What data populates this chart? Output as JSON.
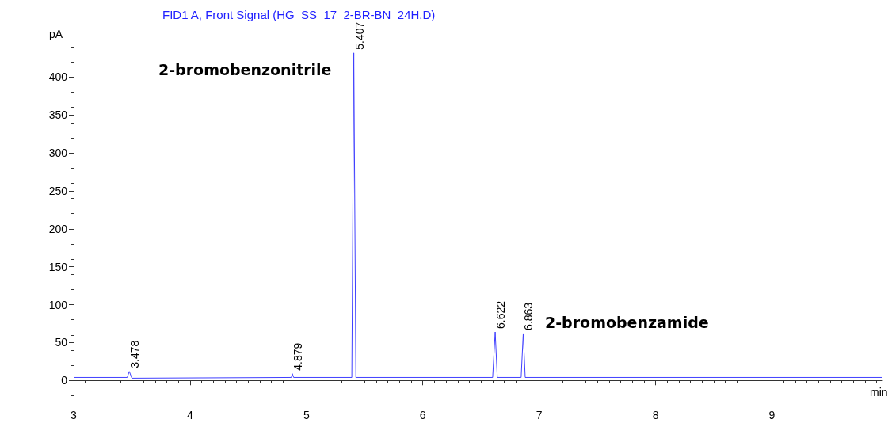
{
  "chart_data": {
    "type": "line",
    "title": "FID1 A, Front Signal (HG_SS_17_2-BR-BN_24H.D)",
    "xlabel": "min",
    "ylabel": "pA",
    "x": [
      3,
      3.46,
      3.478,
      3.5,
      4.87,
      4.879,
      4.89,
      5.39,
      5.407,
      5.425,
      6.6,
      6.622,
      6.64,
      6.845,
      6.863,
      6.88,
      9.95
    ],
    "series": [
      {
        "color": "#4040ff",
        "values": [
          4,
          4,
          12,
          3,
          4,
          9,
          4,
          4,
          432,
          4,
          4,
          64,
          4,
          4,
          62,
          4,
          4
        ]
      }
    ],
    "xlim": [
      3,
      9.95
    ],
    "xticks": [
      3,
      4,
      5,
      6,
      7,
      8,
      9
    ],
    "ylim": [
      -30,
      460
    ],
    "yticks": [
      0,
      50,
      100,
      150,
      200,
      250,
      300,
      350,
      400
    ],
    "grid": false,
    "marker": "none",
    "line_style": "solid",
    "annotations": [
      {
        "text": "3.478",
        "x": 3.478,
        "y": 12
      },
      {
        "text": "4.879",
        "x": 4.879,
        "y": 9
      },
      {
        "text": "5.407",
        "x": 5.407,
        "y": 432
      },
      {
        "text": "6.622",
        "x": 6.622,
        "y": 64
      },
      {
        "text": "6.863",
        "x": 6.863,
        "y": 62
      },
      "2-bromobenzonitrile",
      "2-bromobenzamide"
    ]
  }
}
